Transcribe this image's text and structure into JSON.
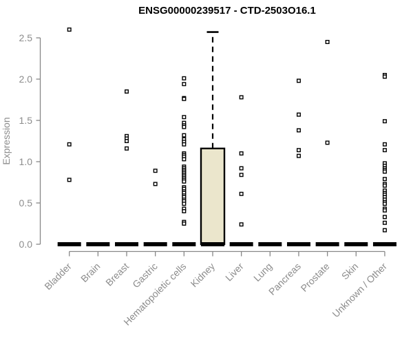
{
  "title": "ENSG00000239517 - CTD-2503O16.1",
  "chart_data": {
    "type": "boxplot",
    "title": "ENSG00000239517 - CTD-2503O16.1",
    "subtitle": "",
    "xlabel": "",
    "ylabel": "Expression",
    "ylim": [
      0,
      2.65
    ],
    "yticks": [
      "0.0",
      "0.5",
      "1.0",
      "1.5",
      "2.0",
      "2.5"
    ],
    "grid": false,
    "legend_position": "none",
    "categories": [
      "Bladder",
      "Brain",
      "Breast",
      "Gastric",
      "Hematopoietic cells",
      "Kidney",
      "Liver",
      "Lung",
      "Pancreas",
      "Prostate",
      "Skin",
      "Unknown / Other"
    ],
    "series": [
      {
        "label": "Bladder",
        "box": {
          "q1": 0,
          "median": 0,
          "q3": 0,
          "whisker_min": 0,
          "whisker_max": 0
        },
        "outliers": [
          2.6,
          1.21,
          0.78
        ]
      },
      {
        "label": "Brain",
        "box": {
          "q1": 0,
          "median": 0,
          "q3": 0,
          "whisker_min": 0,
          "whisker_max": 0
        },
        "outliers": []
      },
      {
        "label": "Breast",
        "box": {
          "q1": 0,
          "median": 0,
          "q3": 0,
          "whisker_min": 0,
          "whisker_max": 0
        },
        "outliers": [
          1.85,
          1.31,
          1.28,
          1.25,
          1.16
        ]
      },
      {
        "label": "Gastric",
        "box": {
          "q1": 0,
          "median": 0,
          "q3": 0,
          "whisker_min": 0,
          "whisker_max": 0
        },
        "outliers": [
          0.89,
          0.73
        ]
      },
      {
        "label": "Hematopoietic cells",
        "box": {
          "q1": 0,
          "median": 0,
          "q3": 0,
          "whisker_min": 0,
          "whisker_max": 0
        },
        "outliers": [
          2.01,
          1.94,
          1.77,
          1.76,
          1.54,
          1.47,
          1.44,
          1.42,
          1.32,
          1.27,
          1.24,
          1.21,
          1.1,
          1.08,
          1.06,
          1.03,
          0.94,
          0.92,
          0.9,
          0.88,
          0.86,
          0.84,
          0.82,
          0.8,
          0.78,
          0.76,
          0.69,
          0.67,
          0.64,
          0.62,
          0.59,
          0.57,
          0.54,
          0.52,
          0.49,
          0.43,
          0.4,
          0.27,
          0.25
        ]
      },
      {
        "label": "Kidney",
        "box": {
          "q1": 0,
          "median": 0,
          "q3": 1.16,
          "whisker_min": 0,
          "whisker_max": 2.57
        },
        "outliers": []
      },
      {
        "label": "Liver",
        "box": {
          "q1": 0,
          "median": 0,
          "q3": 0,
          "whisker_min": 0,
          "whisker_max": 0
        },
        "outliers": [
          1.78,
          1.1,
          0.92,
          0.84,
          0.61,
          0.24
        ]
      },
      {
        "label": "Lung",
        "box": {
          "q1": 0,
          "median": 0,
          "q3": 0,
          "whisker_min": 0,
          "whisker_max": 0
        },
        "outliers": []
      },
      {
        "label": "Pancreas",
        "box": {
          "q1": 0,
          "median": 0,
          "q3": 0,
          "whisker_min": 0,
          "whisker_max": 0
        },
        "outliers": [
          1.98,
          1.57,
          1.38,
          1.14,
          1.07
        ]
      },
      {
        "label": "Prostate",
        "box": {
          "q1": 0,
          "median": 0,
          "q3": 0,
          "whisker_min": 0,
          "whisker_max": 0
        },
        "outliers": [
          2.45,
          1.23
        ]
      },
      {
        "label": "Skin",
        "box": {
          "q1": 0,
          "median": 0,
          "q3": 0,
          "whisker_min": 0,
          "whisker_max": 0
        },
        "outliers": []
      },
      {
        "label": "Unknown / Other",
        "box": {
          "q1": 0,
          "median": 0,
          "q3": 0,
          "whisker_min": 0,
          "whisker_max": 0
        },
        "outliers": [
          2.05,
          2.03,
          1.49,
          1.21,
          1.14,
          0.98,
          0.95,
          0.92,
          0.9,
          0.88,
          0.79,
          0.73,
          0.71,
          0.65,
          0.62,
          0.6,
          0.57,
          0.54,
          0.51,
          0.49,
          0.43,
          0.41,
          0.33,
          0.26,
          0.17
        ]
      }
    ],
    "colors": {
      "background": "#ffffff",
      "box_fill": "#EBE6CC",
      "box_stroke": "#000000",
      "median_bar": "#000000",
      "outlier_stroke": "#000000",
      "outlier_fill": "#ffffff",
      "axis": "#878787",
      "tick_label": "#8c8c8c",
      "title": "#000000"
    }
  }
}
